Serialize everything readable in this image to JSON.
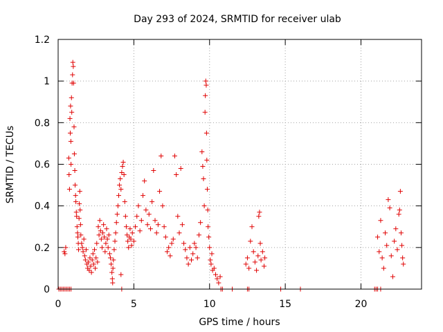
{
  "chart_data": {
    "type": "scatter",
    "title": "Day 293 of 2024, SRMTID for receiver ulab",
    "xlabel": "GPS time / hours",
    "ylabel": "SRMTID / TECUs",
    "xlim": [
      0,
      24
    ],
    "ylim": [
      0,
      1.2
    ],
    "x_ticks": [
      0,
      5,
      10,
      15,
      20
    ],
    "x_tick_labels": [
      "0",
      "5",
      "10",
      "15",
      "20"
    ],
    "y_ticks": [
      0,
      0.2,
      0.4,
      0.6,
      0.8,
      1.0,
      1.2
    ],
    "y_tick_labels": [
      "0",
      "0.2",
      "0.4",
      "0.6",
      "0.8",
      "1",
      "1.2"
    ],
    "grid": true,
    "legend": "none",
    "marker": "plus",
    "series_color": "#e00000",
    "series": [
      {
        "name": "SRMTID",
        "points": [
          [
            0.05,
            0.0
          ],
          [
            0.15,
            0.0
          ],
          [
            0.25,
            0.0
          ],
          [
            0.35,
            0.0
          ],
          [
            0.45,
            0.0
          ],
          [
            0.55,
            0.0
          ],
          [
            0.65,
            0.0
          ],
          [
            0.75,
            0.0
          ],
          [
            0.85,
            0.0
          ],
          [
            0.4,
            0.18
          ],
          [
            0.45,
            0.17
          ],
          [
            0.5,
            0.2
          ],
          [
            0.7,
            0.63
          ],
          [
            0.72,
            0.55
          ],
          [
            0.75,
            0.48
          ],
          [
            0.78,
            0.82
          ],
          [
            0.8,
            0.75
          ],
          [
            0.82,
            0.88
          ],
          [
            0.84,
            0.71
          ],
          [
            0.85,
            0.6
          ],
          [
            0.88,
            0.92
          ],
          [
            0.9,
            0.85
          ],
          [
            0.92,
            0.99
          ],
          [
            0.95,
            1.03
          ],
          [
            0.97,
            1.09
          ],
          [
            1.0,
            1.07
          ],
          [
            1.02,
            0.99
          ],
          [
            1.05,
            0.78
          ],
          [
            1.07,
            0.65
          ],
          [
            1.1,
            0.57
          ],
          [
            1.12,
            0.5
          ],
          [
            1.15,
            0.45
          ],
          [
            1.17,
            0.42
          ],
          [
            1.2,
            0.37
          ],
          [
            1.22,
            0.35
          ],
          [
            1.25,
            0.3
          ],
          [
            1.28,
            0.27
          ],
          [
            1.3,
            0.25
          ],
          [
            1.33,
            0.22
          ],
          [
            1.35,
            0.19
          ],
          [
            1.38,
            0.34
          ],
          [
            1.4,
            0.41
          ],
          [
            1.43,
            0.47
          ],
          [
            1.45,
            0.38
          ],
          [
            1.48,
            0.31
          ],
          [
            1.5,
            0.26
          ],
          [
            1.55,
            0.22
          ],
          [
            1.6,
            0.2
          ],
          [
            1.65,
            0.18
          ],
          [
            1.7,
            0.24
          ],
          [
            1.75,
            0.16
          ],
          [
            1.8,
            0.14
          ],
          [
            1.85,
            0.19
          ],
          [
            1.9,
            0.12
          ],
          [
            1.95,
            0.1
          ],
          [
            2.0,
            0.13
          ],
          [
            2.05,
            0.09
          ],
          [
            2.1,
            0.15
          ],
          [
            2.15,
            0.11
          ],
          [
            2.2,
            0.08
          ],
          [
            2.25,
            0.14
          ],
          [
            2.3,
            0.17
          ],
          [
            2.35,
            0.12
          ],
          [
            2.4,
            0.19
          ],
          [
            2.45,
            0.1
          ],
          [
            2.5,
            0.15
          ],
          [
            2.55,
            0.22
          ],
          [
            2.6,
            0.13
          ],
          [
            2.65,
            0.3
          ],
          [
            2.7,
            0.26
          ],
          [
            2.75,
            0.33
          ],
          [
            2.8,
            0.28
          ],
          [
            2.85,
            0.24
          ],
          [
            2.9,
            0.2
          ],
          [
            2.95,
            0.27
          ],
          [
            3.0,
            0.31
          ],
          [
            3.05,
            0.25
          ],
          [
            3.1,
            0.18
          ],
          [
            3.15,
            0.22
          ],
          [
            3.2,
            0.29
          ],
          [
            3.25,
            0.24
          ],
          [
            3.3,
            0.2
          ],
          [
            3.35,
            0.26
          ],
          [
            3.4,
            0.17
          ],
          [
            3.45,
            0.15
          ],
          [
            3.5,
            0.12
          ],
          [
            3.55,
            0.08
          ],
          [
            3.58,
            0.05
          ],
          [
            3.6,
            0.03
          ],
          [
            3.62,
            0.1
          ],
          [
            3.65,
            0.14
          ],
          [
            3.7,
            0.19
          ],
          [
            3.75,
            0.23
          ],
          [
            3.8,
            0.27
          ],
          [
            3.85,
            0.32
          ],
          [
            3.9,
            0.36
          ],
          [
            3.95,
            0.4
          ],
          [
            4.0,
            0.45
          ],
          [
            4.05,
            0.5
          ],
          [
            4.1,
            0.53
          ],
          [
            4.15,
            0.48
          ],
          [
            4.2,
            0.56
          ],
          [
            4.25,
            0.59
          ],
          [
            4.3,
            0.61
          ],
          [
            4.35,
            0.55
          ],
          [
            4.4,
            0.42
          ],
          [
            4.45,
            0.35
          ],
          [
            4.5,
            0.3
          ],
          [
            4.55,
            0.26
          ],
          [
            4.6,
            0.23
          ],
          [
            4.65,
            0.2
          ],
          [
            4.7,
            0.25
          ],
          [
            4.75,
            0.29
          ],
          [
            4.8,
            0.24
          ],
          [
            4.85,
            0.21
          ],
          [
            4.15,
            0.07
          ],
          [
            4.2,
            0.0
          ],
          [
            4.9,
            0.27
          ],
          [
            5.0,
            0.23
          ],
          [
            5.1,
            0.3
          ],
          [
            5.2,
            0.35
          ],
          [
            5.3,
            0.4
          ],
          [
            5.4,
            0.28
          ],
          [
            5.5,
            0.33
          ],
          [
            5.6,
            0.45
          ],
          [
            5.7,
            0.52
          ],
          [
            5.8,
            0.38
          ],
          [
            5.9,
            0.31
          ],
          [
            6.0,
            0.36
          ],
          [
            6.1,
            0.29
          ],
          [
            6.2,
            0.42
          ],
          [
            6.3,
            0.57
          ],
          [
            6.4,
            0.33
          ],
          [
            6.5,
            0.27
          ],
          [
            6.6,
            0.31
          ],
          [
            6.7,
            0.47
          ],
          [
            6.8,
            0.64
          ],
          [
            6.9,
            0.4
          ],
          [
            7.0,
            0.3
          ],
          [
            7.1,
            0.25
          ],
          [
            7.2,
            0.18
          ],
          [
            7.3,
            0.2
          ],
          [
            7.4,
            0.16
          ],
          [
            7.5,
            0.22
          ],
          [
            7.6,
            0.24
          ],
          [
            7.7,
            0.64
          ],
          [
            7.8,
            0.55
          ],
          [
            7.9,
            0.35
          ],
          [
            8.0,
            0.27
          ],
          [
            8.1,
            0.58
          ],
          [
            8.2,
            0.31
          ],
          [
            8.3,
            0.22
          ],
          [
            8.4,
            0.19
          ],
          [
            8.5,
            0.15
          ],
          [
            8.6,
            0.12
          ],
          [
            8.7,
            0.2
          ],
          [
            8.8,
            0.14
          ],
          [
            8.9,
            0.17
          ],
          [
            9.0,
            0.22
          ],
          [
            9.1,
            0.2
          ],
          [
            9.2,
            0.15
          ],
          [
            9.3,
            0.26
          ],
          [
            9.4,
            0.32
          ],
          [
            9.5,
            0.66
          ],
          [
            9.55,
            0.59
          ],
          [
            9.6,
            0.53
          ],
          [
            9.65,
            0.4
          ],
          [
            9.7,
            0.85
          ],
          [
            9.72,
            0.93
          ],
          [
            9.75,
            1.0
          ],
          [
            9.78,
            0.98
          ],
          [
            9.8,
            0.75
          ],
          [
            9.82,
            0.62
          ],
          [
            9.85,
            0.48
          ],
          [
            9.88,
            0.38
          ],
          [
            9.9,
            0.3
          ],
          [
            9.95,
            0.25
          ],
          [
            10.0,
            0.2
          ],
          [
            10.05,
            0.14
          ],
          [
            10.1,
            0.12
          ],
          [
            10.15,
            0.17
          ],
          [
            10.2,
            0.09
          ],
          [
            10.3,
            0.1
          ],
          [
            10.4,
            0.07
          ],
          [
            10.5,
            0.05
          ],
          [
            10.6,
            0.03
          ],
          [
            10.7,
            0.06
          ],
          [
            10.75,
            0.0
          ],
          [
            10.85,
            0.0
          ],
          [
            11.5,
            0.0
          ],
          [
            12.5,
            0.0
          ],
          [
            12.6,
            0.0
          ],
          [
            12.4,
            0.12
          ],
          [
            12.5,
            0.15
          ],
          [
            12.6,
            0.1
          ],
          [
            12.7,
            0.23
          ],
          [
            12.8,
            0.3
          ],
          [
            12.9,
            0.18
          ],
          [
            13.0,
            0.13
          ],
          [
            13.1,
            0.09
          ],
          [
            13.2,
            0.16
          ],
          [
            13.25,
            0.35
          ],
          [
            13.3,
            0.37
          ],
          [
            13.35,
            0.22
          ],
          [
            13.4,
            0.14
          ],
          [
            13.5,
            0.18
          ],
          [
            13.6,
            0.11
          ],
          [
            13.65,
            0.15
          ],
          [
            14.7,
            0.0
          ],
          [
            16.0,
            0.0
          ],
          [
            20.9,
            0.0
          ],
          [
            21.0,
            0.0
          ],
          [
            21.1,
            0.0
          ],
          [
            21.3,
            0.0
          ],
          [
            21.1,
            0.25
          ],
          [
            21.2,
            0.18
          ],
          [
            21.3,
            0.33
          ],
          [
            21.4,
            0.15
          ],
          [
            21.5,
            0.1
          ],
          [
            21.6,
            0.27
          ],
          [
            21.7,
            0.21
          ],
          [
            21.8,
            0.43
          ],
          [
            21.9,
            0.39
          ],
          [
            22.0,
            0.16
          ],
          [
            22.1,
            0.06
          ],
          [
            22.2,
            0.23
          ],
          [
            22.3,
            0.29
          ],
          [
            22.4,
            0.19
          ],
          [
            22.5,
            0.36
          ],
          [
            22.55,
            0.38
          ],
          [
            22.6,
            0.47
          ],
          [
            22.65,
            0.27
          ],
          [
            22.7,
            0.21
          ],
          [
            22.75,
            0.15
          ],
          [
            22.8,
            0.12
          ]
        ]
      }
    ]
  }
}
